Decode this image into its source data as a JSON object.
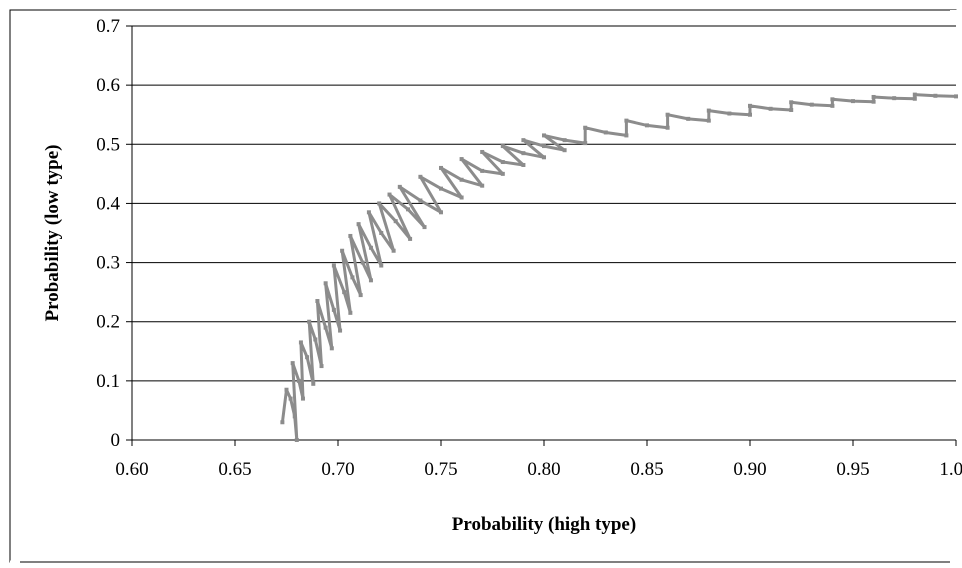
{
  "chart_data": {
    "type": "scatter",
    "title": "",
    "xlabel": "Probability (high type)",
    "ylabel": "Probability (low type)",
    "xlim": [
      0.6,
      1.0
    ],
    "ylim": [
      0,
      0.7
    ],
    "x_ticks": [
      "0.60",
      "0.65",
      "0.70",
      "0.75",
      "0.80",
      "0.85",
      "0.90",
      "0.95",
      "1.00"
    ],
    "y_ticks": [
      "0",
      "0.1",
      "0.2",
      "0.3",
      "0.4",
      "0.5",
      "0.6",
      "0.7"
    ],
    "grid": "horizontal",
    "legend": "none",
    "series": [
      {
        "color": "#8c8c8c",
        "points": [
          [
            0.673,
            0.03
          ],
          [
            0.675,
            0.085
          ],
          [
            0.677,
            0.07
          ],
          [
            0.679,
            0.04
          ],
          [
            0.68,
            0.0
          ],
          [
            0.678,
            0.13
          ],
          [
            0.681,
            0.1
          ],
          [
            0.683,
            0.07
          ],
          [
            0.682,
            0.165
          ],
          [
            0.685,
            0.14
          ],
          [
            0.688,
            0.095
          ],
          [
            0.686,
            0.2
          ],
          [
            0.689,
            0.17
          ],
          [
            0.692,
            0.125
          ],
          [
            0.69,
            0.235
          ],
          [
            0.694,
            0.19
          ],
          [
            0.697,
            0.155
          ],
          [
            0.694,
            0.265
          ],
          [
            0.698,
            0.22
          ],
          [
            0.701,
            0.185
          ],
          [
            0.698,
            0.295
          ],
          [
            0.703,
            0.25
          ],
          [
            0.706,
            0.215
          ],
          [
            0.702,
            0.32
          ],
          [
            0.707,
            0.275
          ],
          [
            0.711,
            0.245
          ],
          [
            0.706,
            0.345
          ],
          [
            0.712,
            0.3
          ],
          [
            0.716,
            0.27
          ],
          [
            0.71,
            0.365
          ],
          [
            0.716,
            0.325
          ],
          [
            0.721,
            0.295
          ],
          [
            0.715,
            0.385
          ],
          [
            0.721,
            0.35
          ],
          [
            0.727,
            0.32
          ],
          [
            0.72,
            0.4
          ],
          [
            0.728,
            0.37
          ],
          [
            0.735,
            0.34
          ],
          [
            0.725,
            0.415
          ],
          [
            0.734,
            0.39
          ],
          [
            0.742,
            0.36
          ],
          [
            0.73,
            0.428
          ],
          [
            0.74,
            0.405
          ],
          [
            0.75,
            0.385
          ],
          [
            0.74,
            0.445
          ],
          [
            0.75,
            0.425
          ],
          [
            0.76,
            0.41
          ],
          [
            0.75,
            0.46
          ],
          [
            0.76,
            0.44
          ],
          [
            0.77,
            0.43
          ],
          [
            0.76,
            0.475
          ],
          [
            0.77,
            0.455
          ],
          [
            0.78,
            0.45
          ],
          [
            0.77,
            0.487
          ],
          [
            0.78,
            0.47
          ],
          [
            0.79,
            0.465
          ],
          [
            0.78,
            0.497
          ],
          [
            0.79,
            0.485
          ],
          [
            0.8,
            0.478
          ],
          [
            0.79,
            0.507
          ],
          [
            0.8,
            0.497
          ],
          [
            0.81,
            0.49
          ],
          [
            0.8,
            0.515
          ],
          [
            0.81,
            0.507
          ],
          [
            0.82,
            0.502
          ],
          [
            0.82,
            0.528
          ],
          [
            0.83,
            0.52
          ],
          [
            0.84,
            0.515
          ],
          [
            0.84,
            0.54
          ],
          [
            0.85,
            0.532
          ],
          [
            0.86,
            0.528
          ],
          [
            0.86,
            0.55
          ],
          [
            0.87,
            0.543
          ],
          [
            0.88,
            0.54
          ],
          [
            0.88,
            0.557
          ],
          [
            0.89,
            0.552
          ],
          [
            0.9,
            0.55
          ],
          [
            0.9,
            0.565
          ],
          [
            0.91,
            0.56
          ],
          [
            0.92,
            0.558
          ],
          [
            0.92,
            0.571
          ],
          [
            0.93,
            0.567
          ],
          [
            0.94,
            0.565
          ],
          [
            0.94,
            0.576
          ],
          [
            0.95,
            0.573
          ],
          [
            0.96,
            0.572
          ],
          [
            0.96,
            0.58
          ],
          [
            0.97,
            0.578
          ],
          [
            0.98,
            0.577
          ],
          [
            0.98,
            0.584
          ],
          [
            0.99,
            0.582
          ],
          [
            1.0,
            0.581
          ]
        ]
      }
    ]
  }
}
